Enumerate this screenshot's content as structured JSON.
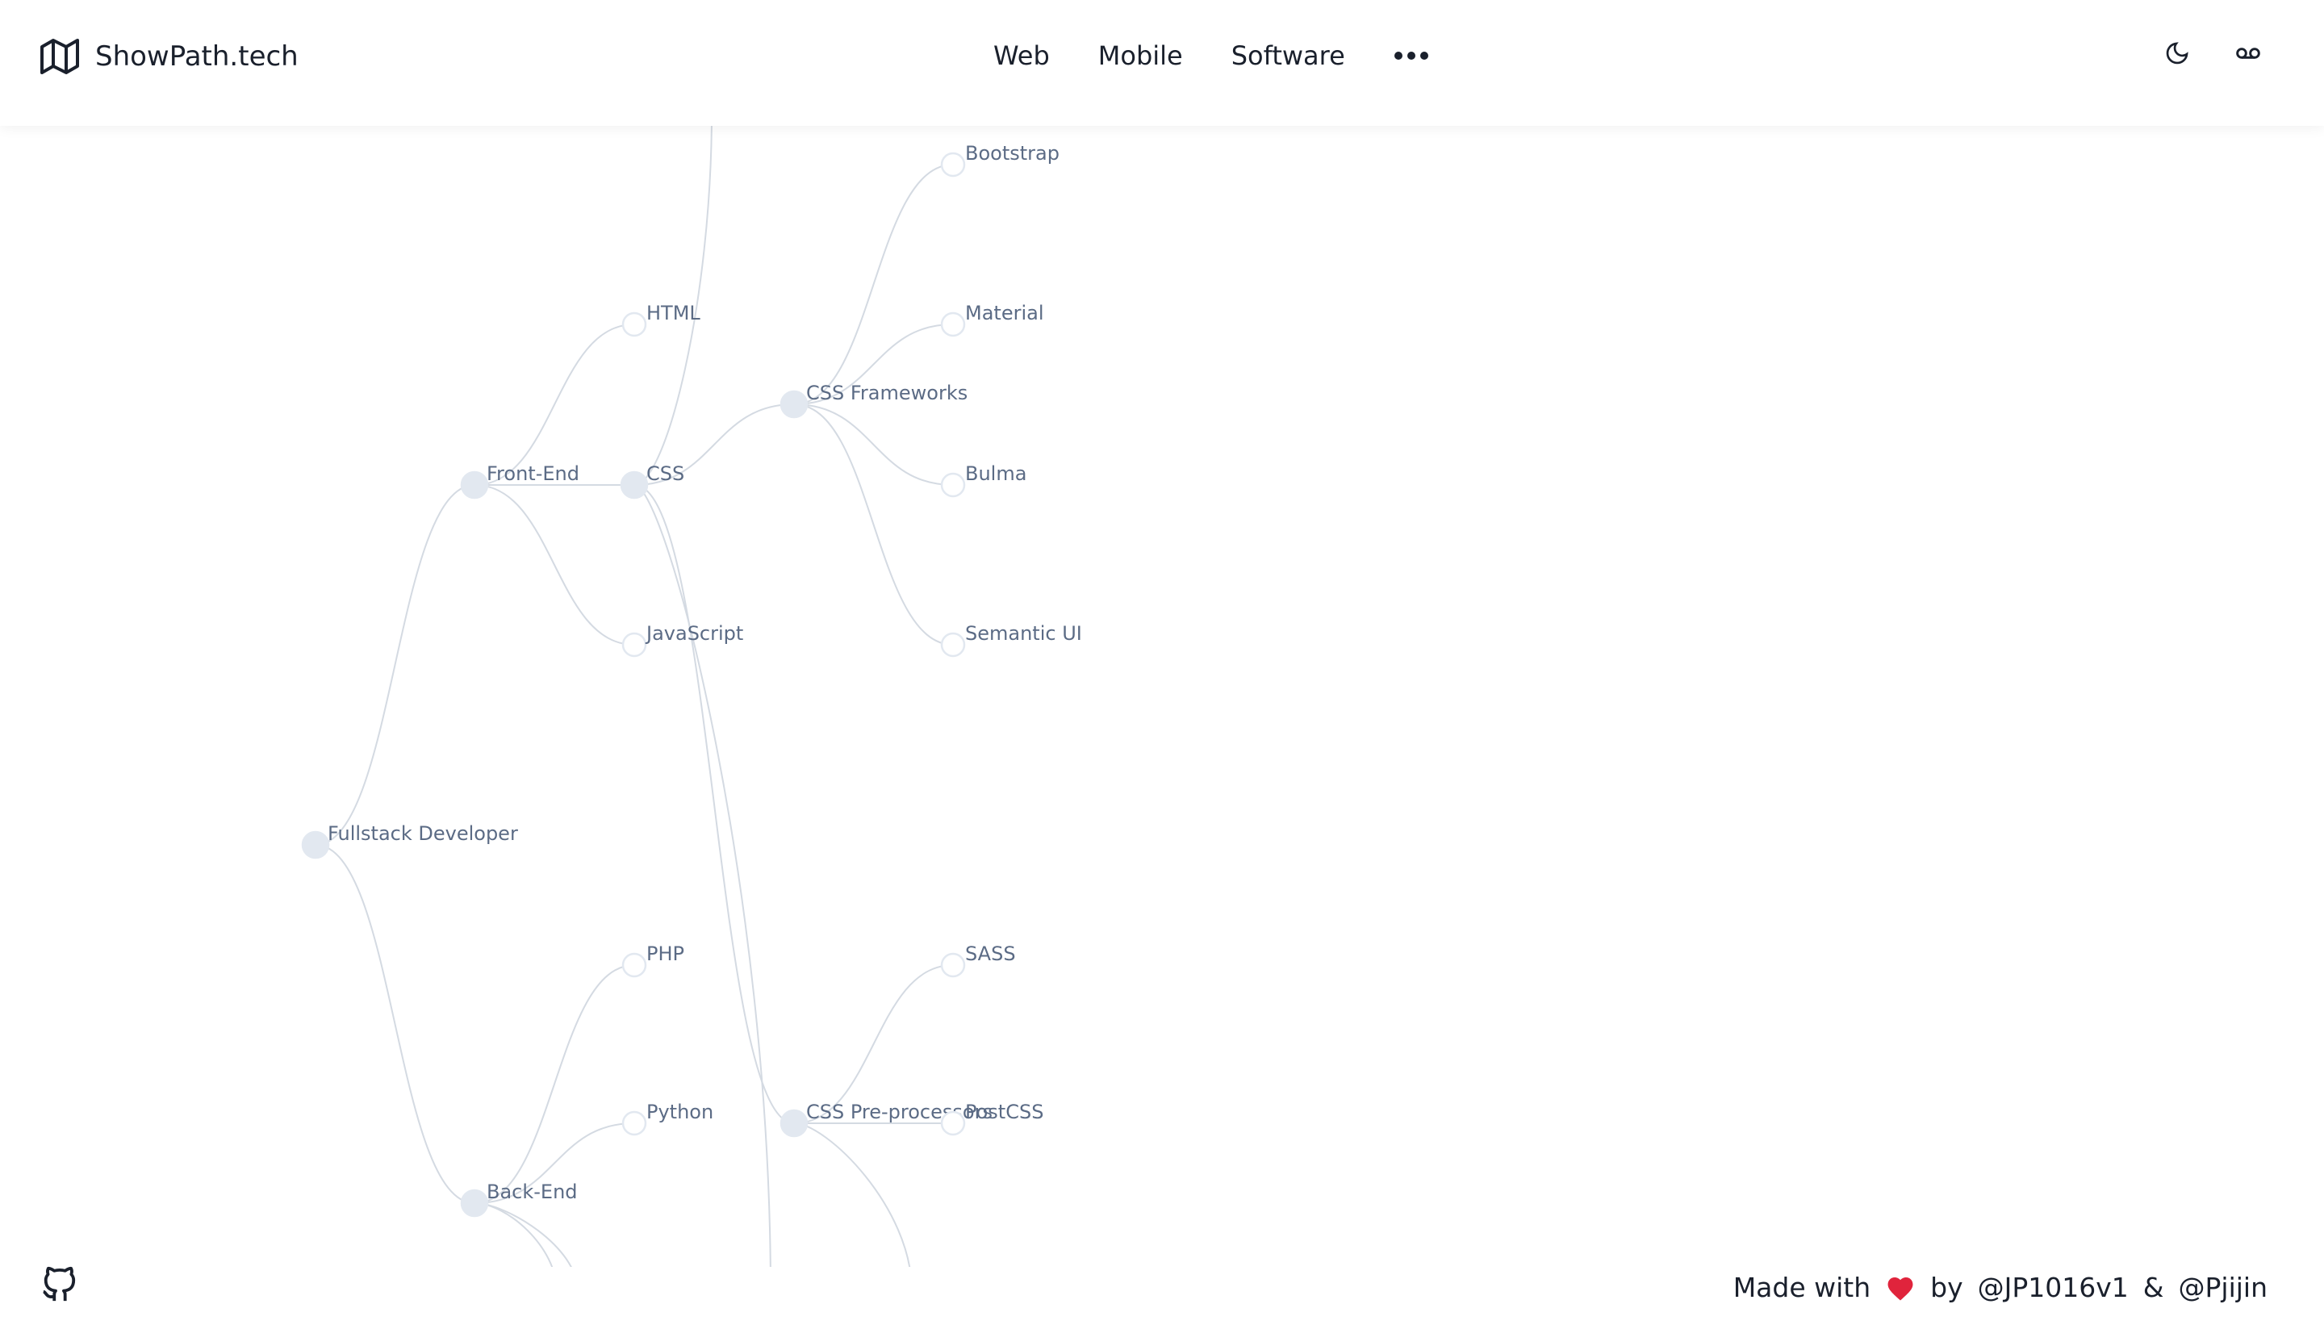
{
  "header": {
    "brand": "ShowPath.tech",
    "nav": [
      "Web",
      "Mobile",
      "Software"
    ]
  },
  "tree": {
    "nodes": [
      {
        "label": "Fullstack Developer"
      },
      {
        "label": "Front-End"
      },
      {
        "label": "Back-End"
      },
      {
        "label": "HTML"
      },
      {
        "label": "CSS"
      },
      {
        "label": "JavaScript"
      },
      {
        "label": "PHP"
      },
      {
        "label": "Python"
      },
      {
        "label": "CSS Frameworks"
      },
      {
        "label": "CSS Pre-processors"
      },
      {
        "label": "Bootstrap"
      },
      {
        "label": "Material"
      },
      {
        "label": "Bulma"
      },
      {
        "label": "Semantic UI"
      },
      {
        "label": "SASS"
      },
      {
        "label": "PostCSS"
      }
    ]
  },
  "footer": {
    "made_with": "Made with",
    "by": "by",
    "authors": [
      "@JP1016v1",
      "@Pjijin"
    ],
    "separator": "&"
  }
}
